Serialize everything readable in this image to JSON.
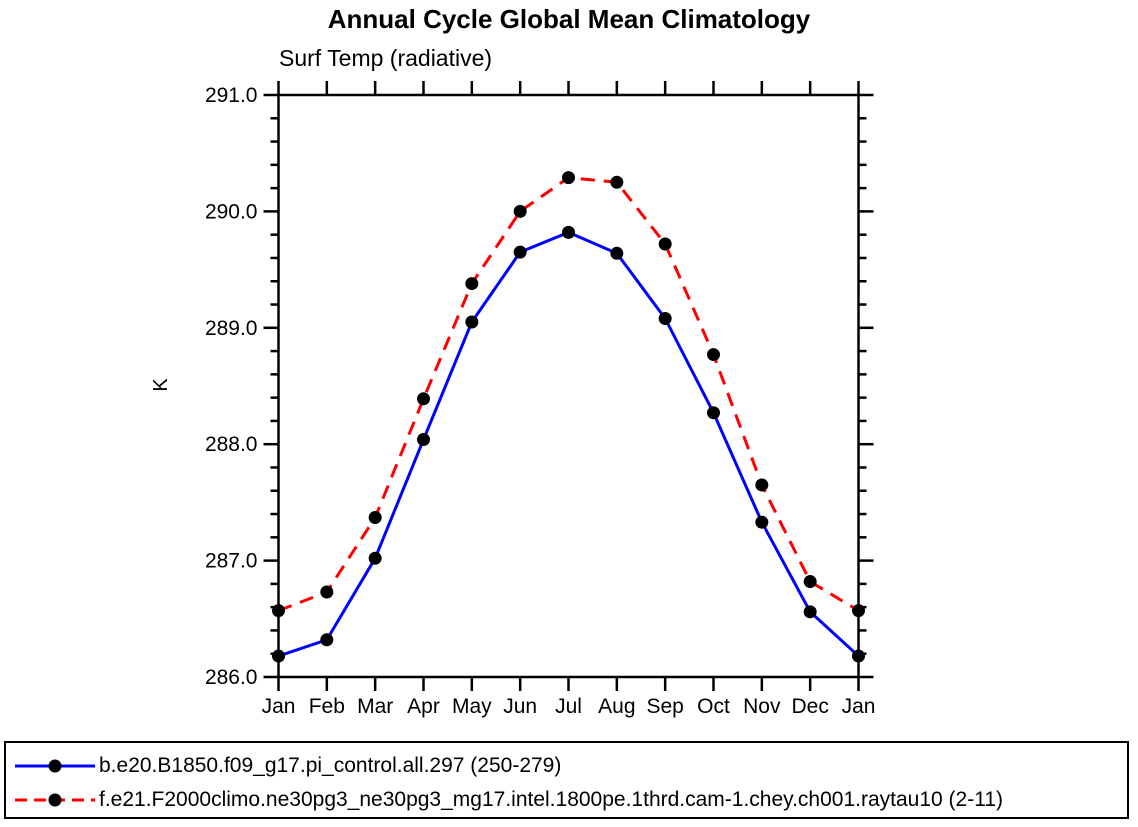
{
  "page": {
    "title": "Annual Cycle Global Mean Climatology",
    "subtitle": "Surf Temp (radiative)",
    "ylabel": "K"
  },
  "chart_data": {
    "type": "line",
    "title": "Annual Cycle Global Mean Climatology",
    "subtitle": "Surf Temp (radiative)",
    "xlabel": "",
    "ylabel": "K",
    "categories": [
      "Jan",
      "Feb",
      "Mar",
      "Apr",
      "May",
      "Jun",
      "Jul",
      "Aug",
      "Sep",
      "Oct",
      "Nov",
      "Dec",
      "Jan"
    ],
    "series": [
      {
        "name": "b.e20.B1850.f09_g17.pi_control.all.297 (250-279)",
        "color": "#0000ff",
        "style": "solid",
        "values": [
          286.18,
          286.32,
          287.02,
          288.04,
          289.05,
          289.65,
          289.82,
          289.64,
          289.08,
          288.27,
          287.33,
          286.56,
          286.18
        ]
      },
      {
        "name": "f.e21.F2000climo.ne30pg3_ne30pg3_mg17.intel.1800pe.1thrd.cam-1.chey.ch001.raytau10 (2-11)",
        "color": "#ff0000",
        "style": "dashed",
        "values": [
          286.57,
          286.73,
          287.37,
          288.39,
          289.38,
          290.0,
          290.29,
          290.25,
          289.72,
          288.77,
          287.65,
          286.82,
          286.57
        ]
      }
    ],
    "ylim": [
      286.0,
      291.0
    ],
    "ytick_interval": 1.0,
    "ytick_minor_interval": 0.2,
    "ytick_labels": [
      "286.0",
      "287.0",
      "288.0",
      "289.0",
      "290.0",
      "291.0"
    ],
    "marker": {
      "shape": "circle",
      "color": "#000000"
    },
    "axis_color": "#000000",
    "grid": false,
    "legend_position": "bottom"
  }
}
